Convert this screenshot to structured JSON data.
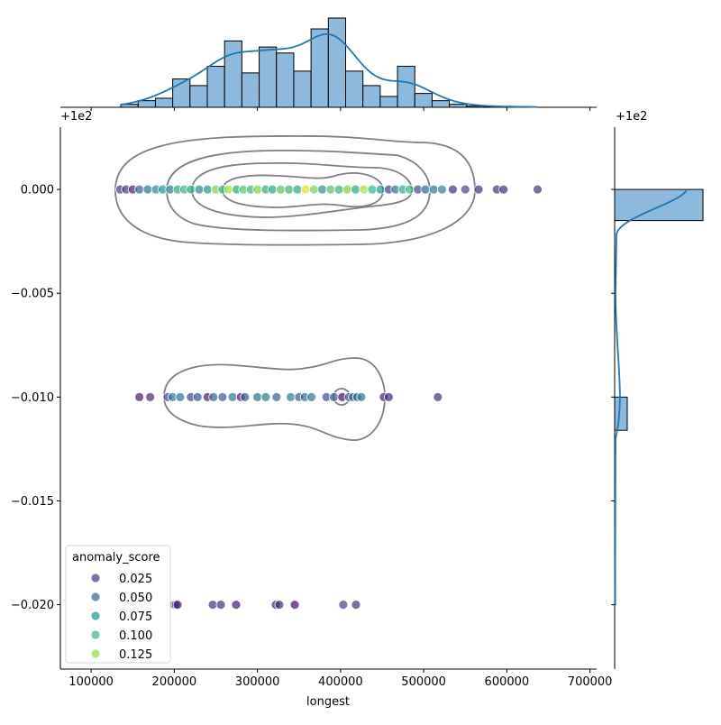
{
  "chart_data": {
    "type": "scatter",
    "subtype": "jointplot with kde contours and marginal histograms",
    "xlabel": "longest",
    "ylabel": "",
    "x_ticks": [
      "100000",
      "200000",
      "300000",
      "400000",
      "500000",
      "600000",
      "700000"
    ],
    "x_tick_values": [
      100000,
      200000,
      300000,
      400000,
      500000,
      600000,
      700000
    ],
    "y_ticks": [
      "0.000",
      "−0.005",
      "−0.010",
      "−0.015",
      "−0.020"
    ],
    "y_tick_values": [
      100.0,
      99.995,
      99.99,
      99.985,
      99.98
    ],
    "y_offset_label": "+1e2",
    "right_marginal_offset_label": "+1e2",
    "xlim": [
      63000,
      708000
    ],
    "ylim": [
      99.9769,
      100.003
    ],
    "grid": false,
    "hue": "anomaly_score",
    "hue_range": [
      0,
      0.15
    ],
    "colormap": "viridis",
    "legend": {
      "title": "anomaly_score",
      "placement": "lower-left",
      "entries": [
        "0.025",
        "0.050",
        "0.075",
        "0.100",
        "0.125"
      ],
      "values": [
        0.025,
        0.05,
        0.075,
        0.1,
        0.125
      ]
    },
    "points": [
      [
        135000,
        100.0,
        0.02
      ],
      [
        142000,
        100.0,
        0.025
      ],
      [
        150000,
        100.0,
        0.015
      ],
      [
        158000,
        100.0,
        0.05
      ],
      [
        168000,
        100.0,
        0.06
      ],
      [
        178000,
        100.0,
        0.07
      ],
      [
        186000,
        100.0,
        0.08
      ],
      [
        195000,
        100.0,
        0.06
      ],
      [
        204000,
        100.0,
        0.09
      ],
      [
        212000,
        100.0,
        0.1
      ],
      [
        220000,
        100.0,
        0.09
      ],
      [
        230000,
        100.0,
        0.07
      ],
      [
        240000,
        100.0,
        0.08
      ],
      [
        250000,
        100.0,
        0.12
      ],
      [
        258000,
        100.0,
        0.1
      ],
      [
        265000,
        100.0,
        0.13
      ],
      [
        275000,
        100.0,
        0.09
      ],
      [
        283000,
        100.0,
        0.11
      ],
      [
        292000,
        100.0,
        0.1
      ],
      [
        300000,
        100.0,
        0.12
      ],
      [
        310000,
        100.0,
        0.095
      ],
      [
        318000,
        100.0,
        0.09
      ],
      [
        328000,
        100.0,
        0.11
      ],
      [
        338000,
        100.0,
        0.1
      ],
      [
        348000,
        100.0,
        0.09
      ],
      [
        358000,
        100.0,
        0.14
      ],
      [
        368000,
        100.0,
        0.12
      ],
      [
        378000,
        100.0,
        0.08
      ],
      [
        388000,
        100.0,
        0.11
      ],
      [
        398000,
        100.0,
        0.1
      ],
      [
        408000,
        100.0,
        0.12
      ],
      [
        418000,
        100.0,
        0.09
      ],
      [
        428000,
        100.0,
        0.13
      ],
      [
        438000,
        100.0,
        0.1
      ],
      [
        448000,
        100.0,
        0.08
      ],
      [
        458000,
        100.0,
        0.03
      ],
      [
        466000,
        100.0,
        0.06
      ],
      [
        475000,
        100.0,
        0.09
      ],
      [
        483000,
        100.0,
        0.1
      ],
      [
        493000,
        100.0,
        0.035
      ],
      [
        502000,
        100.0,
        0.05
      ],
      [
        512000,
        100.0,
        0.06
      ],
      [
        522000,
        100.0,
        0.07
      ],
      [
        535000,
        100.0,
        0.02
      ],
      [
        550000,
        100.0,
        0.03
      ],
      [
        566000,
        100.0,
        0.02
      ],
      [
        588000,
        100.0,
        0.02
      ],
      [
        596000,
        100.0,
        0.02
      ],
      [
        637000,
        100.0,
        0.02
      ],
      [
        158000,
        99.99,
        0.01
      ],
      [
        171000,
        99.99,
        0.015
      ],
      [
        192000,
        99.99,
        0.03
      ],
      [
        198000,
        99.99,
        0.06
      ],
      [
        207000,
        99.99,
        0.055
      ],
      [
        220000,
        99.99,
        0.03
      ],
      [
        228000,
        99.99,
        0.04
      ],
      [
        240000,
        99.99,
        0.01
      ],
      [
        247000,
        99.99,
        0.045
      ],
      [
        258000,
        99.99,
        0.04
      ],
      [
        270000,
        99.99,
        0.06
      ],
      [
        280000,
        99.99,
        0.01
      ],
      [
        285000,
        99.99,
        0.04
      ],
      [
        300000,
        99.99,
        0.055
      ],
      [
        310000,
        99.99,
        0.06
      ],
      [
        323000,
        99.99,
        0.045
      ],
      [
        340000,
        99.99,
        0.065
      ],
      [
        350000,
        99.99,
        0.04
      ],
      [
        357000,
        99.99,
        0.05
      ],
      [
        365000,
        99.99,
        0.06
      ],
      [
        383000,
        99.99,
        0.035
      ],
      [
        392000,
        99.99,
        0.04
      ],
      [
        402000,
        99.99,
        0.005
      ],
      [
        410000,
        99.99,
        0.04
      ],
      [
        415000,
        99.99,
        0.05
      ],
      [
        420000,
        99.99,
        0.045
      ],
      [
        425000,
        99.99,
        0.06
      ],
      [
        452000,
        99.99,
        0.015
      ],
      [
        458000,
        99.99,
        0.02
      ],
      [
        517000,
        99.99,
        0.02
      ],
      [
        199700,
        99.98,
        0.02
      ],
      [
        202000,
        99.98,
        0.005
      ],
      [
        204000,
        99.98,
        0.02
      ],
      [
        246300,
        99.98,
        0.02
      ],
      [
        256000,
        99.98,
        0.02
      ],
      [
        274400,
        99.98,
        0.01
      ],
      [
        322100,
        99.98,
        0.015
      ],
      [
        326400,
        99.98,
        0.02
      ],
      [
        344900,
        99.98,
        0.005
      ],
      [
        403300,
        99.98,
        0.03
      ],
      [
        418500,
        99.98,
        0.02
      ]
    ],
    "x_marginal_histogram": {
      "bin_start": 135700,
      "bin_width": 20800,
      "counts": [
        5,
        11,
        15,
        47,
        36,
        68,
        110,
        57,
        100,
        90,
        60,
        130,
        148,
        60,
        36,
        18,
        68,
        23,
        11,
        5,
        2,
        1,
        1,
        1
      ]
    },
    "y_marginal_histogram": {
      "bins": [
        {
          "y_low": 99.9985,
          "y_high": 100.0,
          "count": 1100
        },
        {
          "y_low": 99.9884,
          "y_high": 99.99,
          "count": 157
        },
        {
          "y_low": 99.98,
          "y_high": 99.9816,
          "count": 11
        }
      ]
    },
    "colors": {
      "hist_fill": "#8db9dc",
      "kde_line": "#1f77b4",
      "contour": "#808080"
    }
  }
}
